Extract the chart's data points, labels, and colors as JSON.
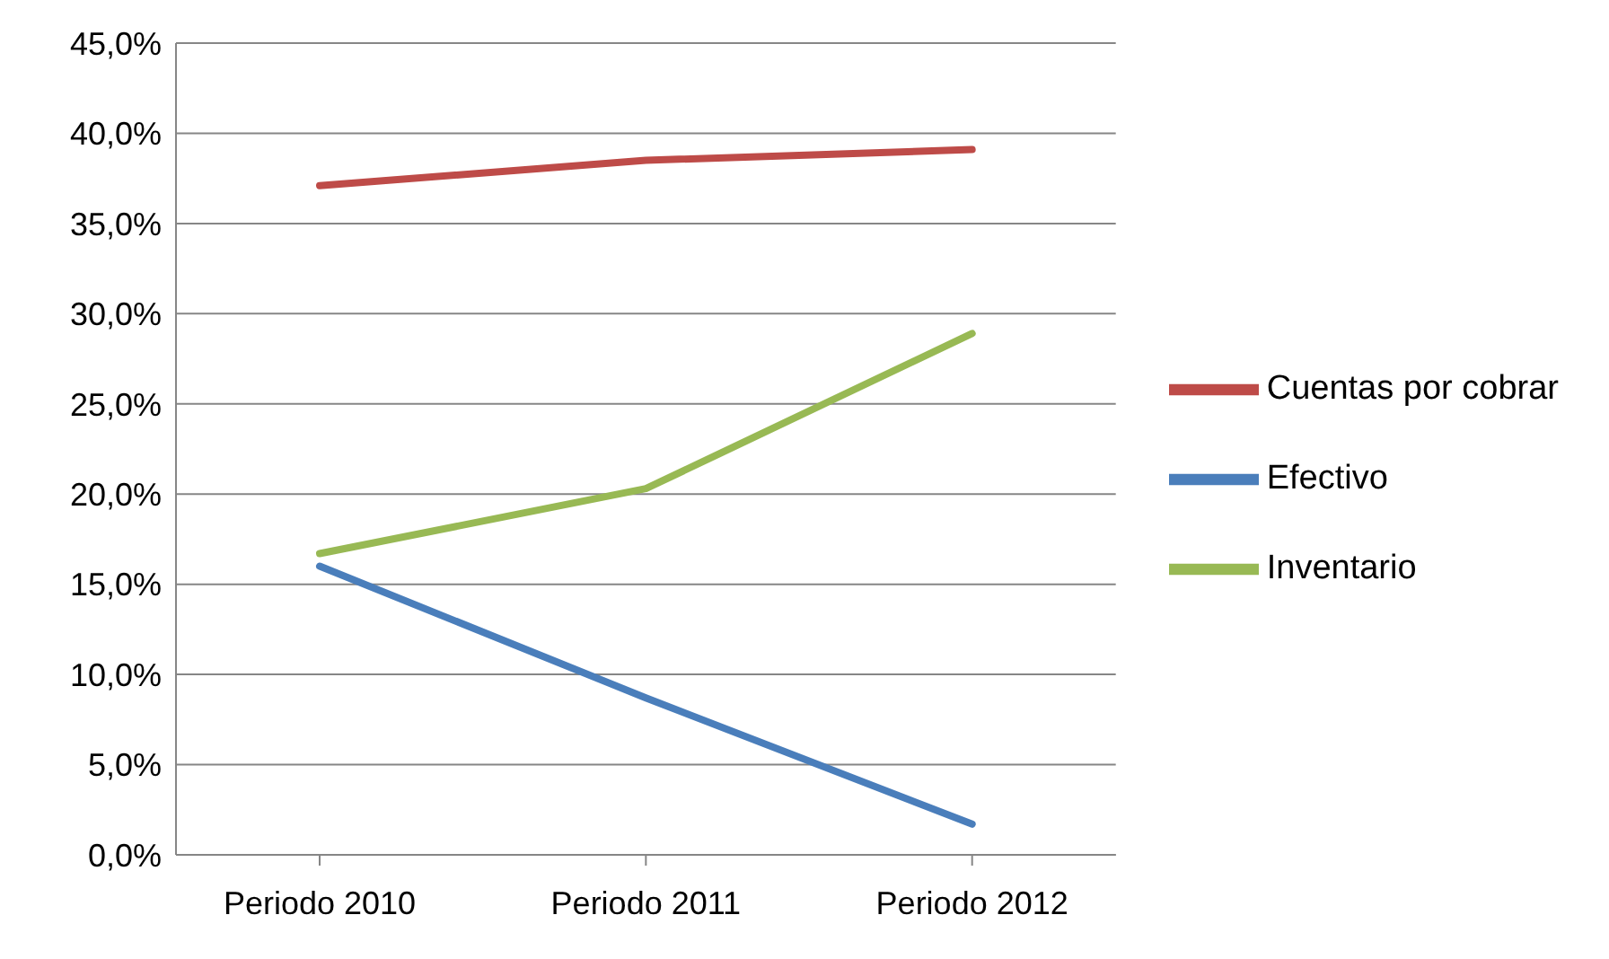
{
  "chart_data": {
    "type": "line",
    "categories": [
      "Periodo 2010",
      "Periodo 2011",
      "Periodo 2012"
    ],
    "series": [
      {
        "name": "Efectivo",
        "color": "#4a7ebb",
        "values": [
          16.0,
          8.7,
          1.7
        ]
      },
      {
        "name": "Cuentas por cobrar",
        "color": "#be4b48",
        "values": [
          37.1,
          38.5,
          39.1
        ]
      },
      {
        "name": "Inventario",
        "color": "#98b954",
        "values": [
          16.7,
          20.3,
          28.9
        ]
      }
    ],
    "ylim": [
      0,
      45
    ],
    "yticks": [
      {
        "value": 0,
        "label": "0,0%"
      },
      {
        "value": 5,
        "label": "5,0%"
      },
      {
        "value": 10,
        "label": "10,0%"
      },
      {
        "value": 15,
        "label": "15,0%"
      },
      {
        "value": 20,
        "label": "20,0%"
      },
      {
        "value": 25,
        "label": "25,0%"
      },
      {
        "value": 30,
        "label": "30,0%"
      },
      {
        "value": 35,
        "label": "35,0%"
      },
      {
        "value": 40,
        "label": "40,0%"
      },
      {
        "value": 45,
        "label": "45,0%"
      }
    ],
    "grid": "y",
    "legend": "right",
    "marker": "none",
    "line_style": "solid"
  }
}
